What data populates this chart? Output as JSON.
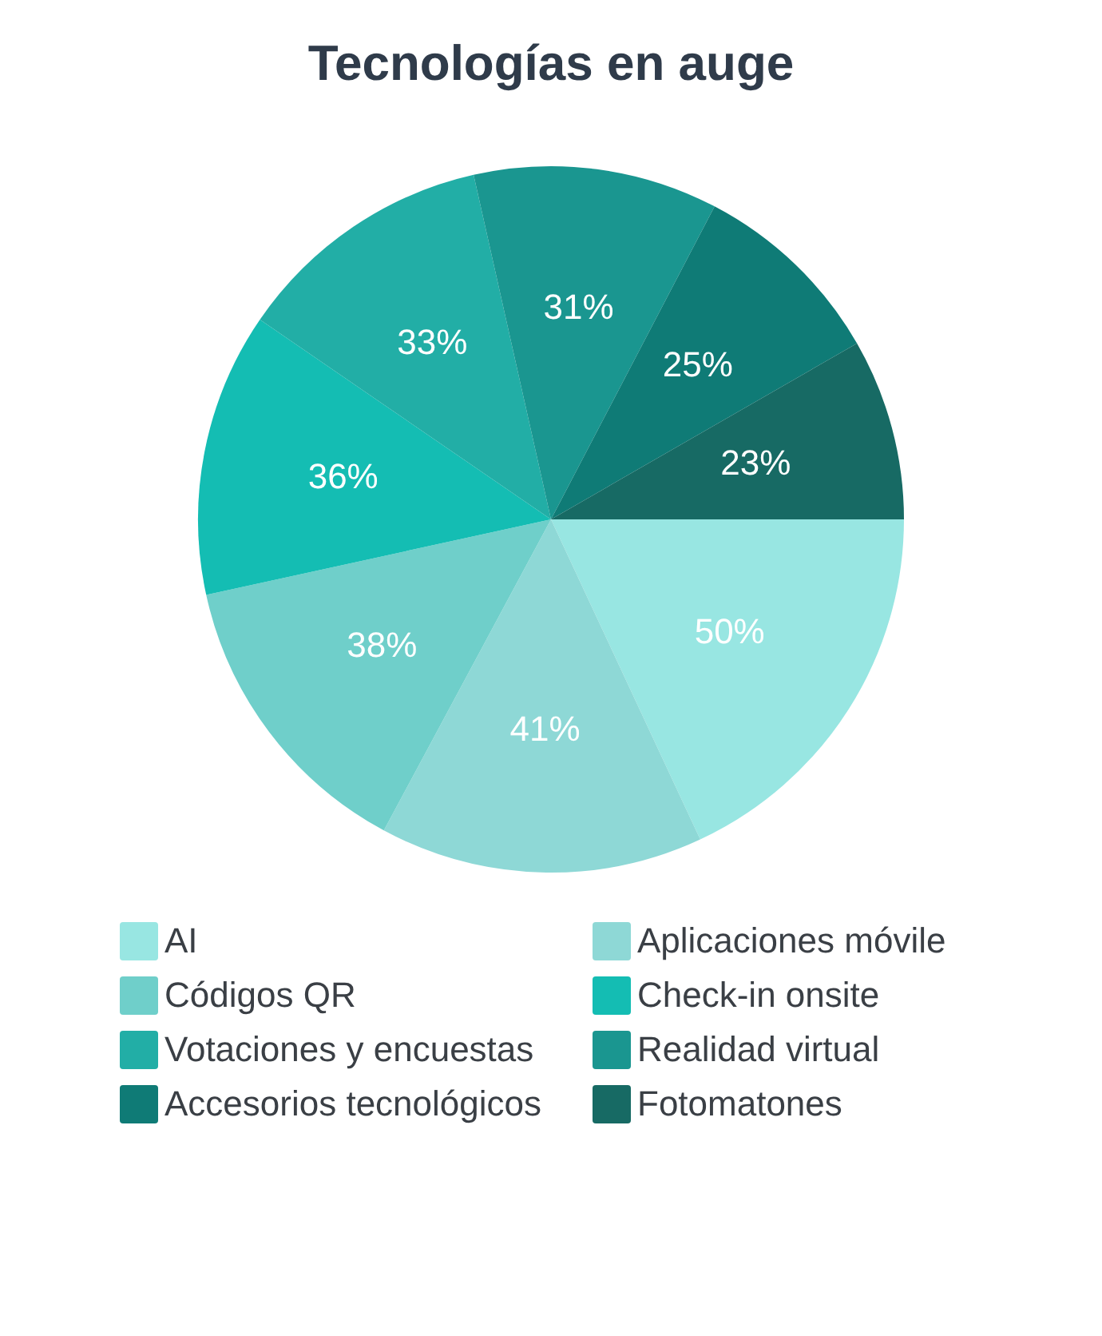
{
  "chart_data": {
    "type": "pie",
    "title": "Tecnologías en auge",
    "categories": [
      "AI",
      "Aplicaciones móvile",
      "Códigos QR",
      "Check-in onsite",
      "Votaciones y encuestas",
      "Realidad virtual",
      "Accesorios tecnológicos",
      "Fotomatones"
    ],
    "values": [
      50,
      41,
      38,
      36,
      33,
      31,
      25,
      23
    ],
    "value_labels": [
      "50%",
      "41%",
      "38%",
      "36%",
      "33%",
      "31%",
      "25%",
      "23%"
    ],
    "colors": [
      "#98e6e2",
      "#8ed8d6",
      "#6fcfca",
      "#14bdb3",
      "#22aea6",
      "#1a9690",
      "#0f7b76",
      "#176a64"
    ],
    "legend": "bottom"
  }
}
